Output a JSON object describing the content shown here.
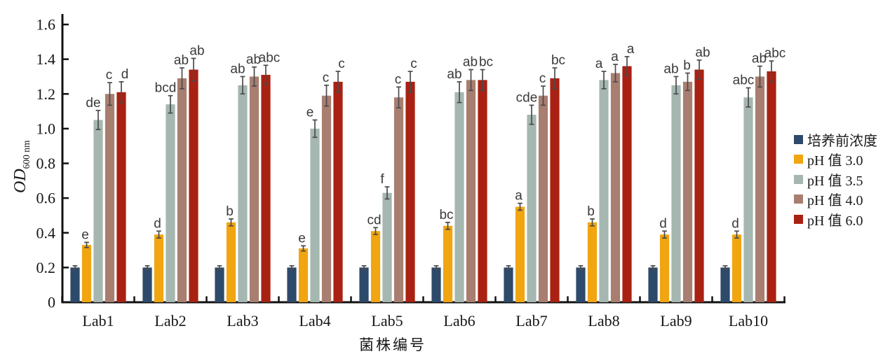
{
  "figure": {
    "background": "#ffffff"
  },
  "chart_data": {
    "type": "bar",
    "title": "",
    "xlabel": "菌株编号",
    "ylabel": "OD",
    "ylabel_sub": "600 nm",
    "ylim": [
      0,
      1.6
    ],
    "ytick_step": 0.2,
    "grid": false,
    "error_bars": true,
    "legend_position": "right",
    "categories": [
      "Lab1",
      "Lab2",
      "Lab3",
      "Lab4",
      "Lab5",
      "Lab6",
      "Lab7",
      "Lab8",
      "Lab9",
      "Lab10"
    ],
    "series": [
      {
        "name": "培养前浓度",
        "color": "#2d4a6b",
        "values": [
          0.2,
          0.2,
          0.2,
          0.2,
          0.2,
          0.2,
          0.2,
          0.2,
          0.2,
          0.2
        ],
        "errors": [
          0.01,
          0.01,
          0.01,
          0.01,
          0.01,
          0.01,
          0.01,
          0.01,
          0.01,
          0.01
        ],
        "letters": [
          "",
          "",
          "",
          "",
          "",
          "",
          "",
          "",
          "",
          ""
        ]
      },
      {
        "name": "pH 值 3.0",
        "color": "#f0a511",
        "values": [
          0.33,
          0.39,
          0.46,
          0.31,
          0.41,
          0.44,
          0.55,
          0.46,
          0.39,
          0.39
        ],
        "errors": [
          0.015,
          0.02,
          0.02,
          0.015,
          0.02,
          0.02,
          0.02,
          0.02,
          0.02,
          0.02
        ],
        "letters": [
          "e",
          "d",
          "b",
          "e",
          "cd",
          "bc",
          "a",
          "b",
          "d",
          "d"
        ]
      },
      {
        "name": "pH 值 3.5",
        "color": "#a5b7b0",
        "values": [
          1.05,
          1.14,
          1.25,
          1.0,
          0.63,
          1.21,
          1.08,
          1.28,
          1.25,
          1.18
        ],
        "errors": [
          0.055,
          0.05,
          0.05,
          0.05,
          0.035,
          0.06,
          0.055,
          0.05,
          0.05,
          0.055
        ],
        "letters": [
          "de",
          "bcd",
          "ab",
          "e",
          "f",
          "ab",
          "cde",
          "a",
          "ab",
          "abc"
        ]
      },
      {
        "name": "pH 值 4.0",
        "color": "#a87e70",
        "values": [
          1.2,
          1.29,
          1.3,
          1.19,
          1.18,
          1.28,
          1.19,
          1.32,
          1.27,
          1.3
        ],
        "errors": [
          0.065,
          0.06,
          0.055,
          0.06,
          0.06,
          0.06,
          0.055,
          0.05,
          0.05,
          0.06
        ],
        "letters": [
          "c",
          "ab",
          "ab",
          "c",
          "c",
          "ab",
          "c",
          "a",
          "b",
          "ab"
        ]
      },
      {
        "name": "pH 值 6.0",
        "color": "#a92112",
        "values": [
          1.21,
          1.34,
          1.31,
          1.27,
          1.27,
          1.28,
          1.29,
          1.36,
          1.34,
          1.33
        ],
        "errors": [
          0.06,
          0.065,
          0.055,
          0.06,
          0.06,
          0.06,
          0.06,
          0.055,
          0.055,
          0.06
        ],
        "letters": [
          "d",
          "ab",
          "abc",
          "c",
          "c",
          "bc",
          "bc",
          "a",
          "ab",
          "abc"
        ]
      }
    ]
  }
}
